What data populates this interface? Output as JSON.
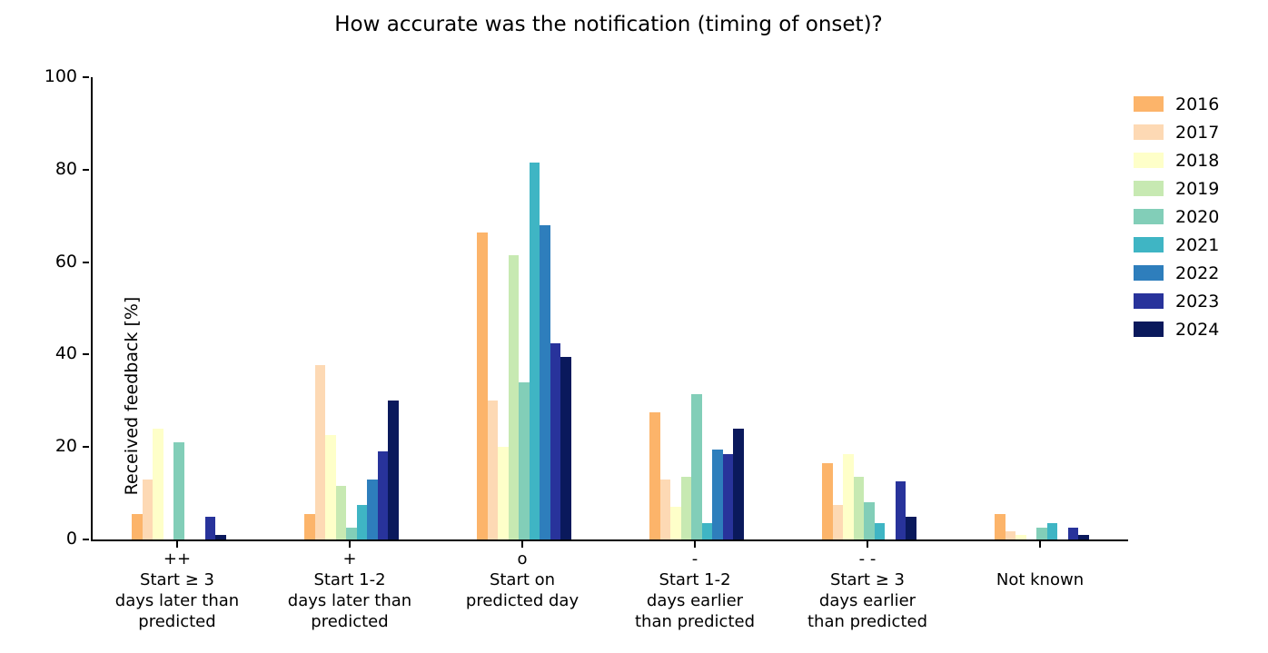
{
  "chart_data": {
    "type": "bar",
    "title": "How accurate was the notification (timing of onset)?",
    "ylabel": "Received feedback [%]",
    "xlabel": "",
    "ylim": [
      0,
      100
    ],
    "yticks": [
      0,
      20,
      40,
      60,
      80,
      100
    ],
    "grid": false,
    "legend_position": "outside upper right",
    "categories": [
      {
        "symbol": "++",
        "lines": [
          "Start ≥ 3",
          "days later than",
          "predicted"
        ]
      },
      {
        "symbol": "+",
        "lines": [
          "Start 1-2",
          "days later than",
          "predicted"
        ]
      },
      {
        "symbol": "o",
        "lines": [
          "Start on",
          "predicted day"
        ]
      },
      {
        "symbol": "-",
        "lines": [
          "Start 1-2",
          "days earlier",
          "than predicted"
        ]
      },
      {
        "symbol": "- -",
        "lines": [
          "Start ≥ 3",
          "days earlier",
          "than predicted"
        ]
      },
      {
        "symbol": "",
        "lines": [
          "Not known"
        ]
      }
    ],
    "series": [
      {
        "name": "2016",
        "color": "#fcb46a",
        "values": [
          5.5,
          5.5,
          66.5,
          27.5,
          16.5,
          5.5
        ]
      },
      {
        "name": "2017",
        "color": "#fdd9b4",
        "values": [
          13,
          37.7,
          30,
          13,
          7.5,
          1.8
        ]
      },
      {
        "name": "2018",
        "color": "#feffc9",
        "values": [
          24,
          22.5,
          20,
          7,
          18.5,
          1
        ]
      },
      {
        "name": "2019",
        "color": "#c7e9b2",
        "values": [
          0,
          11.5,
          61.5,
          13.5,
          13.5,
          0
        ]
      },
      {
        "name": "2020",
        "color": "#82ceb8",
        "values": [
          21,
          2.5,
          34,
          31.5,
          8,
          2.5
        ]
      },
      {
        "name": "2021",
        "color": "#3fb5c4",
        "values": [
          0,
          7.5,
          81.5,
          3.5,
          3.5,
          3.5
        ]
      },
      {
        "name": "2022",
        "color": "#2e7ebc",
        "values": [
          0,
          13,
          68,
          19.5,
          0,
          0
        ]
      },
      {
        "name": "2023",
        "color": "#28339b",
        "values": [
          5,
          19,
          42.5,
          18.5,
          12.5,
          2.5
        ]
      },
      {
        "name": "2024",
        "color": "#0a195c",
        "values": [
          1,
          30,
          39.5,
          24,
          5,
          1
        ]
      }
    ]
  }
}
